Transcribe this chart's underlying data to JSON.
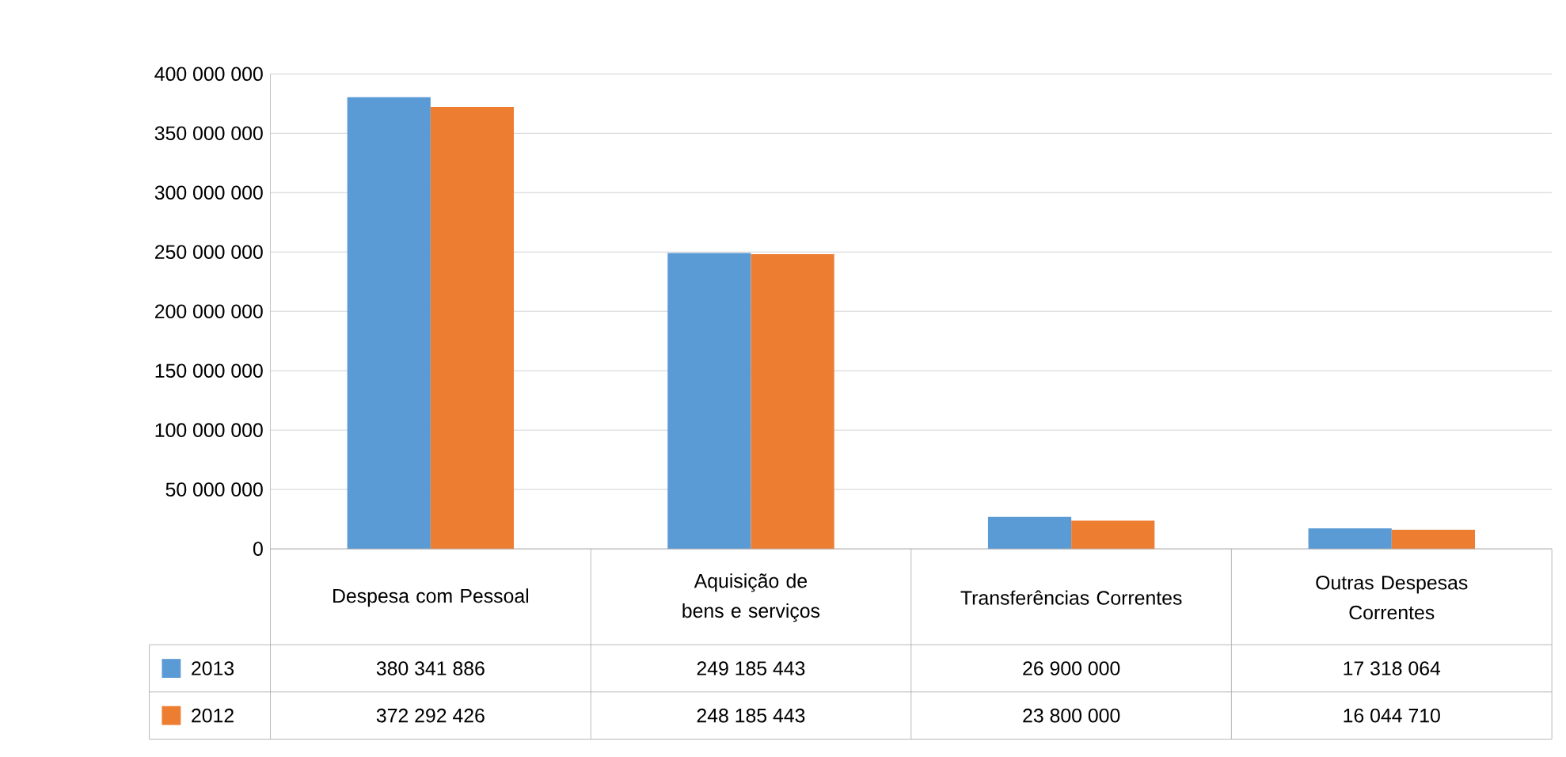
{
  "chart_data": {
    "type": "bar",
    "categories": [
      "Despesa com Pessoal",
      "Aquisição de bens e serviços",
      "Transferências Correntes",
      "Outras Despesas Correntes"
    ],
    "series": [
      {
        "name": "2013",
        "color": "#5b9bd5",
        "values": [
          380341886,
          249185443,
          26900000,
          17318064
        ],
        "value_labels": [
          "380 341 886",
          "249 185 443",
          "26 900 000",
          "17 318 064"
        ]
      },
      {
        "name": "2012",
        "color": "#ed7d31",
        "values": [
          372292426,
          248185443,
          23800000,
          16044710
        ],
        "value_labels": [
          "372 292 426",
          "248 185 443",
          "23 800 000",
          "16 044 710"
        ]
      }
    ],
    "ylim": [
      0,
      400000000
    ],
    "yticks": [
      {
        "value": 0,
        "label": "0"
      },
      {
        "value": 50000000,
        "label": "50 000 000"
      },
      {
        "value": 100000000,
        "label": "100 000 000"
      },
      {
        "value": 150000000,
        "label": "150 000 000"
      },
      {
        "value": 200000000,
        "label": "200 000 000"
      },
      {
        "value": 250000000,
        "label": "250 000 000"
      },
      {
        "value": 300000000,
        "label": "300 000 000"
      },
      {
        "value": 350000000,
        "label": "350 000 000"
      },
      {
        "value": 400000000,
        "label": "400 000 000"
      }
    ],
    "grid": "y",
    "legend": "bottom"
  }
}
